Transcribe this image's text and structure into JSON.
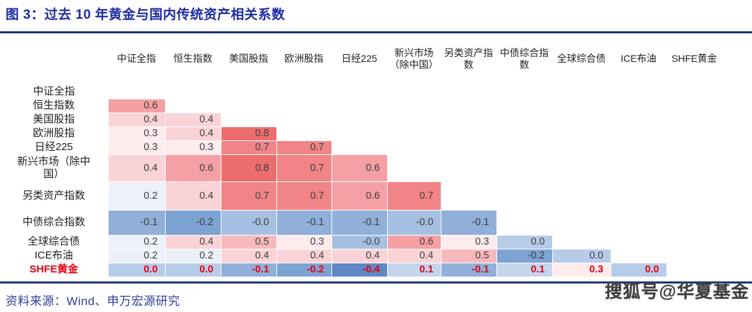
{
  "title": "图 3：过去 10 年黄金与国内传统资产相关系数",
  "source_note": "资料来源：Wind、申万宏源研究",
  "watermark": "搜狐号@华夏基金",
  "colors": {
    "title_text": "#1d2ba5",
    "divider": "#1f3575",
    "source_text": "#2e3e99",
    "gold_row_text": "#e60012",
    "cell_text": "#3d3d3d"
  },
  "chart_data": {
    "type": "heatmap",
    "title": "过去 10 年黄金与国内传统资产相关系数",
    "legend_position": "none",
    "grid": false,
    "columns": [
      "中证全指",
      "恒生指数",
      "美国股指",
      "欧洲股指",
      "日经225",
      "新兴市场（除中国）",
      "另类资产指数",
      "中债综合指数",
      "全球综合债",
      "ICE布油",
      "SHFE黄金"
    ],
    "rows": [
      {
        "label": "中证全指",
        "values": []
      },
      {
        "label": "恒生指数",
        "values": [
          "0.6"
        ]
      },
      {
        "label": "美国股指",
        "values": [
          "0.4",
          "0.4"
        ]
      },
      {
        "label": "欧洲股指",
        "values": [
          "0.3",
          "0.4",
          "0.8"
        ]
      },
      {
        "label": "日经225",
        "values": [
          "0.3",
          "0.3",
          "0.7",
          "0.7"
        ]
      },
      {
        "label": "新兴市场（除中国）",
        "values": [
          "0.4",
          "0.6",
          "0.8",
          "0.7",
          "0.6"
        ]
      },
      {
        "label": "另类资产指数",
        "values": [
          "0.2",
          "0.4",
          "0.7",
          "0.7",
          "0.6",
          "0.7"
        ]
      },
      {
        "label": "中债综合指数",
        "values": [
          "-0.1",
          "-0.2",
          "-0.0",
          "-0.1",
          "-0.1",
          "-0.0",
          "-0.1"
        ]
      },
      {
        "label": "全球综合债",
        "values": [
          "0.2",
          "0.4",
          "0.5",
          "0.3",
          "-0.0",
          "0.6",
          "0.3",
          "0.0"
        ]
      },
      {
        "label": "ICE布油",
        "values": [
          "0.2",
          "0.2",
          "0.4",
          "0.4",
          "0.4",
          "0.4",
          "0.5",
          "-0.2",
          "0.0"
        ]
      },
      {
        "label": "SHFE黄金",
        "values": [
          "0.0",
          "0.0",
          "-0.1",
          "-0.2",
          "-0.4",
          "0.1",
          "-0.1",
          "0.1",
          "0.3",
          "0.0"
        ],
        "highlight": true
      }
    ],
    "value_colors": {
      "0.8": "#ed6d6f",
      "0.7": "#f18486",
      "0.6": "#f5a0a4",
      "0.5": "#f8b9bd",
      "0.4": "#fad3d7",
      "0.3": "#fdebed",
      "0.2": "#ecf1f9",
      "0.1": "#c4d5ec",
      "0.0": "#b7cce8",
      "-0.0": "#a6c0e2",
      "-0.1": "#90b0d9",
      "-0.2": "#7da3d3",
      "-0.4": "#5f88c5"
    }
  }
}
